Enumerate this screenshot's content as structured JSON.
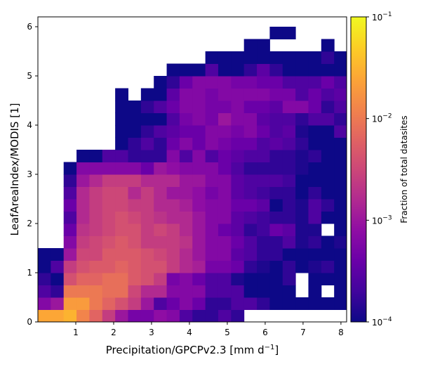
{
  "chart_data": {
    "type": "heatmap",
    "xlabel_main": "Precipitation/GPCPv2.3 [mm d",
    "xlabel_sup": "−1",
    "xlabel_end": "]",
    "ylabel": "LeafAreaIndex/MODIS [1]",
    "colorbar_label": "Fraction of total datasites",
    "colormap": "plasma",
    "colorbar_scale": "log",
    "colorbar_range": [
      0.0001,
      0.1
    ],
    "colorbar_ticks": [
      {
        "base": "10",
        "exp": "−1",
        "value": 0.1
      },
      {
        "base": "10",
        "exp": "−2",
        "value": 0.01
      },
      {
        "base": "10",
        "exp": "−3",
        "value": 0.001
      },
      {
        "base": "10",
        "exp": "−4",
        "value": 0.0001
      }
    ],
    "xlim": [
      0,
      8.15
    ],
    "ylim": [
      0,
      6.2
    ],
    "xticks": [
      "1",
      "2",
      "3",
      "4",
      "5",
      "6",
      "7",
      "8"
    ],
    "yticks": [
      "0",
      "1",
      "2",
      "3",
      "4",
      "5",
      "6"
    ],
    "bins_x": 24,
    "bins_y": 24,
    "bin_width_x": 0.34,
    "bin_width_y": 0.25,
    "note_on_values": "cell values below are log10(fraction of total datasites); null = empty bin",
    "rows_from_bottom": [
      [
        -1.6,
        -1.6,
        -1.5,
        -1.9,
        -2.2,
        -2.6,
        -3.0,
        -3.3,
        -3.3,
        -3.1,
        -3.2,
        -3.6,
        -3.8,
        -3.8,
        -3.6,
        -3.8,
        null,
        null,
        null,
        null,
        null,
        null,
        null,
        null
      ],
      [
        -3.2,
        -3.0,
        -1.7,
        -1.7,
        -2.0,
        -2.2,
        -2.4,
        -2.6,
        -3.0,
        -3.6,
        -3.4,
        -3.2,
        -3.4,
        -3.8,
        -3.8,
        -3.6,
        -3.6,
        -3.8,
        -4.0,
        -4.0,
        -4.0,
        -4.0,
        -4.0,
        -4.0
      ],
      [
        -3.6,
        -3.8,
        -2.0,
        -2.0,
        -2.0,
        -2.1,
        -2.1,
        -2.5,
        -2.8,
        -2.8,
        -3.2,
        -3.2,
        -3.2,
        -3.6,
        -3.6,
        -3.6,
        -4.0,
        -4.0,
        -4.0,
        -4.0,
        null,
        -4.0,
        null,
        -4.0
      ],
      [
        -3.8,
        -4.0,
        -2.4,
        -2.2,
        -2.2,
        -2.1,
        -2.1,
        -2.3,
        -2.4,
        -2.6,
        -3.3,
        -3.2,
        -3.4,
        -3.6,
        -3.6,
        -3.9,
        -4.0,
        -4.0,
        -4.0,
        -3.8,
        null,
        -4.0,
        -4.0,
        -4.0
      ],
      [
        -4.0,
        -3.6,
        -2.6,
        -2.4,
        -2.3,
        -2.3,
        -2.2,
        -2.3,
        -2.4,
        -2.4,
        -2.6,
        -2.8,
        -2.9,
        -3.3,
        -3.3,
        -3.4,
        -3.8,
        -3.9,
        -4.0,
        -3.8,
        -4.0,
        -3.9,
        -3.8,
        -4.0
      ],
      [
        -4.0,
        -4.0,
        -3.0,
        -2.5,
        -2.5,
        -2.3,
        -2.3,
        -2.3,
        -2.4,
        -2.5,
        -2.6,
        -2.8,
        -3.0,
        -3.2,
        -3.2,
        -3.5,
        -3.6,
        -3.8,
        -3.8,
        -4.0,
        -4.0,
        -4.0,
        -4.0,
        -4.0
      ],
      [
        null,
        null,
        -3.2,
        -2.6,
        -2.5,
        -2.4,
        -2.3,
        -2.4,
        -2.6,
        -2.6,
        -2.6,
        -2.7,
        -3.0,
        -3.2,
        -3.2,
        -3.4,
        -3.6,
        -3.8,
        -3.8,
        -3.6,
        -3.9,
        -3.8,
        -4.0,
        -3.9
      ],
      [
        null,
        null,
        -3.4,
        -2.7,
        -2.6,
        -2.5,
        -2.4,
        -2.4,
        -2.6,
        -2.5,
        -2.6,
        -2.8,
        -3.0,
        -3.2,
        -3.4,
        -3.5,
        -3.8,
        -3.7,
        -3.4,
        -3.5,
        -3.9,
        -3.9,
        null,
        -4.0
      ],
      [
        null,
        null,
        -3.6,
        -2.8,
        -2.6,
        -2.5,
        -2.4,
        -2.5,
        -2.6,
        -2.7,
        -2.8,
        -2.8,
        -3.0,
        -3.2,
        -3.2,
        -3.5,
        -3.6,
        -3.7,
        -3.8,
        -3.8,
        -3.9,
        -3.6,
        -4.0,
        -4.0
      ],
      [
        null,
        null,
        -3.4,
        -2.8,
        -2.6,
        -2.5,
        -2.5,
        -2.6,
        -2.6,
        -2.8,
        -2.8,
        -2.9,
        -3.1,
        -3.2,
        -3.2,
        -3.4,
        -3.4,
        -3.5,
        -4.0,
        -3.8,
        -3.9,
        -3.6,
        -3.8,
        -4.0
      ],
      [
        null,
        null,
        -3.6,
        -2.8,
        -2.6,
        -2.5,
        -2.5,
        -2.8,
        -2.6,
        -2.8,
        -3.0,
        -3.0,
        -3.1,
        -3.3,
        -3.2,
        -3.5,
        -3.6,
        -3.7,
        -3.8,
        -3.8,
        -4.0,
        -3.8,
        -4.0,
        -4.0
      ],
      [
        null,
        null,
        -3.8,
        -3.0,
        -2.8,
        -2.6,
        -2.6,
        -2.6,
        -2.8,
        -2.8,
        -2.8,
        -3.0,
        -3.0,
        -3.2,
        -3.2,
        -3.5,
        -3.6,
        -3.6,
        -3.6,
        -3.7,
        -4.0,
        -4.0,
        -4.0,
        -4.0
      ],
      [
        null,
        null,
        -4.0,
        -3.2,
        -3.2,
        -3.2,
        -3.2,
        -3.2,
        -3.4,
        -3.0,
        -3.1,
        -3.2,
        -3.2,
        -3.2,
        -3.4,
        -3.6,
        -3.8,
        -3.8,
        -3.8,
        -3.8,
        -3.9,
        -4.0,
        -4.0,
        -4.0
      ],
      [
        null,
        null,
        null,
        -4.0,
        -4.0,
        -3.6,
        -3.6,
        -3.8,
        -3.8,
        -3.8,
        -3.2,
        -3.6,
        -3.2,
        -3.6,
        -3.4,
        -3.5,
        -3.6,
        -3.6,
        -3.8,
        -3.8,
        -3.9,
        -3.8,
        -4.0,
        -4.0
      ],
      [
        null,
        null,
        null,
        null,
        null,
        null,
        -4.0,
        -3.8,
        -3.6,
        -3.8,
        -3.4,
        -3.2,
        -3.4,
        -3.2,
        -3.3,
        -3.4,
        -3.4,
        -3.6,
        -3.5,
        -3.6,
        -3.8,
        -4.0,
        -4.0,
        -4.0
      ],
      [
        null,
        null,
        null,
        null,
        null,
        null,
        -4.0,
        -4.0,
        -3.8,
        -3.6,
        -3.5,
        -3.4,
        -3.4,
        -3.2,
        -3.2,
        -3.3,
        -3.2,
        -3.4,
        -3.6,
        -3.5,
        -3.9,
        -4.0,
        -4.0,
        -3.6
      ],
      [
        null,
        null,
        null,
        null,
        null,
        null,
        -4.0,
        -4.0,
        -4.0,
        -4.0,
        -3.6,
        -3.3,
        -3.2,
        -3.3,
        -3.0,
        -3.2,
        -3.2,
        -3.5,
        -3.6,
        -3.6,
        -3.8,
        -3.6,
        -3.6,
        -3.8
      ],
      [
        null,
        null,
        null,
        null,
        null,
        null,
        -4.0,
        -4.0,
        -3.8,
        -3.6,
        -3.4,
        -3.2,
        -3.2,
        -3.3,
        -3.3,
        -3.2,
        -3.4,
        -3.4,
        -3.5,
        -3.2,
        -3.2,
        -3.4,
        -3.8,
        -3.6
      ],
      [
        null,
        null,
        null,
        null,
        null,
        null,
        -4.0,
        null,
        -4.0,
        -4.0,
        -3.5,
        -3.2,
        -3.2,
        -3.3,
        -3.2,
        -3.2,
        -3.2,
        -3.2,
        -3.3,
        -3.3,
        -3.6,
        -3.4,
        -3.6,
        -3.5
      ],
      [
        null,
        null,
        null,
        null,
        null,
        null,
        null,
        null,
        null,
        -4.0,
        -3.8,
        -3.4,
        -3.2,
        -3.2,
        -3.2,
        -3.3,
        -3.3,
        -3.4,
        -3.4,
        -3.6,
        -3.6,
        -3.6,
        -3.4,
        -3.6
      ],
      [
        null,
        null,
        null,
        null,
        null,
        null,
        null,
        null,
        null,
        null,
        -4.0,
        -4.0,
        -4.0,
        -3.6,
        -4.0,
        -4.0,
        -3.8,
        -3.5,
        -3.8,
        -4.0,
        -4.0,
        -4.0,
        -4.0,
        -4.0
      ],
      [
        null,
        null,
        null,
        null,
        null,
        null,
        null,
        null,
        null,
        null,
        null,
        null,
        null,
        -4.0,
        -4.0,
        -4.0,
        -4.0,
        -4.0,
        -4.0,
        -4.0,
        -4.0,
        -4.0,
        -3.8,
        -4.0
      ],
      [
        null,
        null,
        null,
        null,
        null,
        null,
        null,
        null,
        null,
        null,
        null,
        null,
        null,
        null,
        null,
        null,
        -4.0,
        -4.0,
        null,
        null,
        null,
        null,
        -4.0,
        null
      ],
      [
        null,
        null,
        null,
        null,
        null,
        null,
        null,
        null,
        null,
        null,
        null,
        null,
        null,
        null,
        null,
        null,
        null,
        null,
        -4.0,
        -4.0,
        null,
        null,
        null,
        null
      ]
    ]
  }
}
